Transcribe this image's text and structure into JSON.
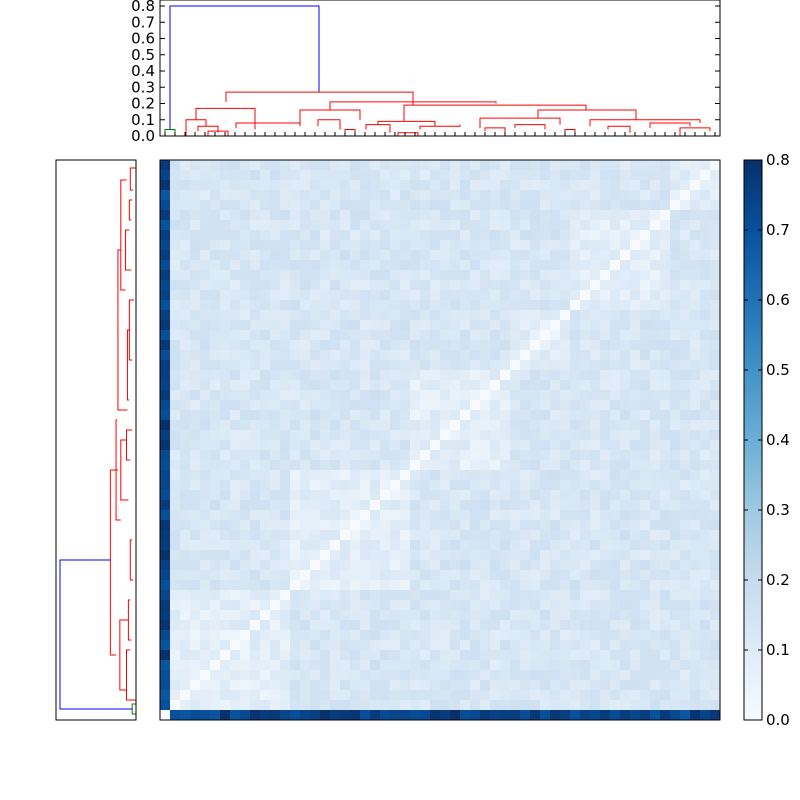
{
  "chart_data": [
    {
      "type": "dendrogram",
      "orientation": "top",
      "ylim": [
        0,
        0.85
      ],
      "yticks": [
        "0.0",
        "0.1",
        "0.2",
        "0.3",
        "0.4",
        "0.5",
        "0.6",
        "0.7",
        "0.8"
      ],
      "ytick_values": [
        0,
        0.1,
        0.2,
        0.3,
        0.4,
        0.5,
        0.6,
        0.7,
        0.8
      ],
      "leaf_count": 56,
      "colors": {
        "root": "#0000ff",
        "main_cluster": "#ff0000",
        "outlier_cluster": "#008000"
      },
      "merges": [
        {
          "label": "root",
          "height": 0.8
        },
        {
          "label": "main-cluster-top",
          "height": 0.27
        },
        {
          "label": "sub-cluster-a",
          "height": 0.21
        },
        {
          "label": "sub-cluster-b",
          "height": 0.19
        },
        {
          "label": "sub-cluster-c",
          "height": 0.17
        },
        {
          "label": "outlier-pair",
          "height": 0.04
        }
      ]
    },
    {
      "type": "dendrogram",
      "orientation": "left",
      "leaf_count": 56,
      "colors": {
        "root": "#0000ff",
        "main_cluster": "#ff0000",
        "outlier_cluster": "#008000"
      }
    },
    {
      "type": "heatmap",
      "rows": 56,
      "cols": 56,
      "description_of_values": "pairwise distance; outlier row/column ~0.7-0.8, within-cluster diagonal ~0, other cells 0.05-0.2",
      "colormap": "Blues",
      "colorbar": {
        "range": [
          0.0,
          0.8
        ],
        "ticks": [
          "0.0",
          "0.1",
          "0.2",
          "0.3",
          "0.4",
          "0.5",
          "0.6",
          "0.7",
          "0.8"
        ],
        "tick_values": [
          0,
          0.1,
          0.2,
          0.3,
          0.4,
          0.5,
          0.6,
          0.7,
          0.8
        ]
      }
    }
  ]
}
